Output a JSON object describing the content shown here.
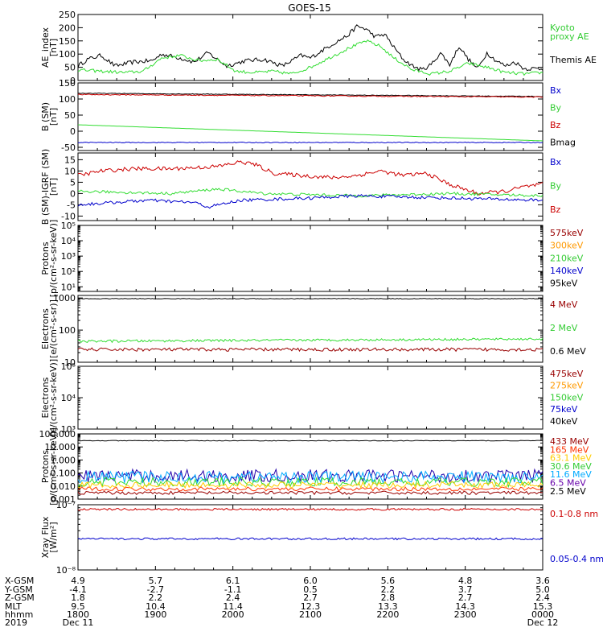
{
  "title": "GOES-15",
  "panels": [
    {
      "id": "ae",
      "ylabel": [
        "AE_index",
        "[nT]"
      ],
      "scale": "linear",
      "yrange": [
        0,
        250
      ],
      "ticks": [
        "0",
        "50",
        "100",
        "150",
        "200",
        "250"
      ],
      "legend": [
        {
          "text": "Kyoto",
          "color": "#33cc33"
        },
        {
          "text": "proxy AE",
          "color": "#33cc33"
        },
        {
          "text": "Themis AE",
          "color": "#000000"
        }
      ],
      "series": [
        {
          "name": "Themis AE",
          "color": "#000000",
          "gen": "ae_black"
        },
        {
          "name": "Kyoto proxy AE",
          "color": "#33dd33",
          "gen": "ae_green"
        }
      ]
    },
    {
      "id": "bsm",
      "ylabel": [
        "B (SM)",
        "[nT]"
      ],
      "scale": "linear",
      "yrange": [
        -60,
        150
      ],
      "ticks": [
        "-50",
        "0",
        "50",
        "100",
        "150"
      ],
      "tickvals": [
        -50,
        0,
        50,
        100,
        150
      ],
      "legend": [
        {
          "text": "Bx",
          "color": "#0000cc"
        },
        {
          "text": "By",
          "color": "#33cc33"
        },
        {
          "text": "Bz",
          "color": "#cc0000"
        },
        {
          "text": "Bmag",
          "color": "#000000"
        }
      ],
      "series": [
        {
          "name": "Bmag",
          "color": "#000000",
          "gen": "bsm_mag"
        },
        {
          "name": "Bz",
          "color": "#cc0000",
          "gen": "bsm_z"
        },
        {
          "name": "By",
          "color": "#33dd33",
          "gen": "bsm_y"
        },
        {
          "name": "Bx",
          "color": "#0000cc",
          "gen": "bsm_x"
        }
      ]
    },
    {
      "id": "bigrf",
      "ylabel": [
        "B (SM)-IGRF (SM)",
        "[nT]"
      ],
      "scale": "linear",
      "yrange": [
        -12,
        18
      ],
      "ticks": [
        "-10",
        "-5",
        "0",
        "5",
        "10",
        "15"
      ],
      "tickvals": [
        -10,
        -5,
        0,
        5,
        10,
        15
      ],
      "legend": [
        {
          "text": "Bx",
          "color": "#0000cc"
        },
        {
          "text": "By",
          "color": "#33cc33"
        },
        {
          "text": "Bz",
          "color": "#cc0000"
        }
      ],
      "series": [
        {
          "name": "Bz",
          "color": "#cc0000",
          "gen": "igrf_z"
        },
        {
          "name": "By",
          "color": "#33dd33",
          "gen": "igrf_y"
        },
        {
          "name": "Bx",
          "color": "#0000cc",
          "gen": "igrf_x"
        }
      ]
    },
    {
      "id": "protons_low",
      "ylabel": [
        "Protons",
        "[p/(cm²-s-sr-keV)]"
      ],
      "scale": "log",
      "yrange": [
        5,
        100000
      ],
      "ticks": [
        "10¹",
        "10²",
        "10³",
        "10⁴",
        "10⁵"
      ],
      "tickvals": [
        10,
        100,
        1000,
        10000,
        100000
      ],
      "legend": [
        {
          "text": "575keV",
          "color": "#990000"
        },
        {
          "text": "300keV",
          "color": "#ff9900"
        },
        {
          "text": "210keV",
          "color": "#33cc33"
        },
        {
          "text": "140keV",
          "color": "#0000cc"
        },
        {
          "text": "95keV",
          "color": "#000000"
        }
      ],
      "series": []
    },
    {
      "id": "electrons_high",
      "ylabel": [
        "Electrons",
        "[e/(cm²-s-sr)]"
      ],
      "scale": "log",
      "yrange": [
        10,
        1200
      ],
      "ticks": [
        "10",
        "100",
        "1000"
      ],
      "tickvals": [
        10,
        100,
        1000
      ],
      "legend": [
        {
          "text": "4 MeV",
          "color": "#990000"
        },
        {
          "text": "2 MeV",
          "color": "#33cc33"
        },
        {
          "text": "0.6 MeV",
          "color": "#000000"
        }
      ],
      "series": [
        {
          "name": "0.6 MeV",
          "color": "#000000",
          "gen": "e_black"
        },
        {
          "name": "2 MeV",
          "color": "#33dd33",
          "gen": "e_green"
        },
        {
          "name": "4 MeV",
          "color": "#990000",
          "gen": "e_red"
        }
      ]
    },
    {
      "id": "electrons_low",
      "ylabel": [
        "Electrons",
        "[e/(cm²-s-sr-keV)]"
      ],
      "scale": "log",
      "yrange": [
        1000,
        100000
      ],
      "ticks": [
        "10³",
        "10⁴",
        "10⁵"
      ],
      "tickvals": [
        1000,
        10000,
        100000
      ],
      "legend": [
        {
          "text": "475keV",
          "color": "#990000"
        },
        {
          "text": "275keV",
          "color": "#ff9900"
        },
        {
          "text": "150keV",
          "color": "#33cc33"
        },
        {
          "text": "75keV",
          "color": "#0000cc"
        },
        {
          "text": "40keV",
          "color": "#000000"
        }
      ],
      "series": []
    },
    {
      "id": "protons_high",
      "ylabel": [
        "Protons",
        "[p/(cm²-s-sr-keV)]"
      ],
      "scale": "log",
      "yrange": [
        0.001,
        100
      ],
      "ticks": [
        "0.001",
        "0.010",
        "0.100",
        "1.000",
        "10.000",
        "100.000"
      ],
      "tickvals": [
        0.001,
        0.01,
        0.1,
        1,
        10,
        100
      ],
      "legend": [
        {
          "text": "433 MeV",
          "color": "#990000"
        },
        {
          "text": "165 MeV",
          "color": "#ff3300"
        },
        {
          "text": "63.1 MeV",
          "color": "#ffcc00"
        },
        {
          "text": "30.6 MeV",
          "color": "#33cc33"
        },
        {
          "text": "11.6 MeV",
          "color": "#00aaff"
        },
        {
          "text": "6.5 MeV",
          "color": "#6600aa"
        },
        {
          "text": "2.5 MeV",
          "color": "#000000"
        }
      ],
      "series": [
        {
          "name": "2.5 MeV",
          "color": "#000000",
          "gen": "p_black"
        },
        {
          "name": "433 MeV",
          "color": "#990000",
          "gen": "p_red"
        },
        {
          "name": "165 MeV",
          "color": "#ff3300",
          "gen": "p_orange"
        },
        {
          "name": "6.5 MeV",
          "color": "#2200aa",
          "gen": "p_purple"
        },
        {
          "name": "11.6 MeV",
          "color": "#00aaff",
          "gen": "p_cyan"
        },
        {
          "name": "30.6 MeV",
          "color": "#33dd33",
          "gen": "p_green"
        },
        {
          "name": "63.1 MeV",
          "color": "#ffcc00",
          "gen": "p_yellow"
        }
      ]
    },
    {
      "id": "xray",
      "ylabel": [
        "Xray Flux",
        "[W/m²]"
      ],
      "scale": "log",
      "yrange": [
        1e-08,
        1e-07
      ],
      "ticks": [
        "10⁻⁸",
        "10⁻⁷"
      ],
      "tickvals": [
        1e-08,
        1e-07
      ],
      "legend": [
        {
          "text": "0.1-0.8 nm",
          "color": "#cc0000"
        },
        {
          "text": "0.05-0.4 nm",
          "color": "#0000cc"
        }
      ],
      "series": [
        {
          "name": "0.1-0.8 nm",
          "color": "#cc0000",
          "gen": "x_red"
        },
        {
          "name": "0.05-0.4 nm",
          "color": "#0000cc",
          "gen": "x_blue"
        }
      ]
    }
  ],
  "ephemeris": {
    "labels": [
      "X-GSM",
      "Y-GSM",
      "Z-GSM",
      "MLT",
      "hhmm",
      "2019"
    ],
    "columns": [
      [
        "4.9",
        "-4.1",
        "1.8",
        "9.5",
        "1800",
        "Dec 11"
      ],
      [
        "5.7",
        "-2.7",
        "2.2",
        "10.4",
        "1900",
        ""
      ],
      [
        "6.1",
        "-1.1",
        "2.4",
        "11.4",
        "2000",
        ""
      ],
      [
        "6.0",
        "0.5",
        "2.7",
        "12.3",
        "2100",
        ""
      ],
      [
        "5.6",
        "2.2",
        "2.8",
        "13.3",
        "2200",
        ""
      ],
      [
        "4.8",
        "3.7",
        "2.7",
        "14.3",
        "2300",
        ""
      ],
      [
        "3.6",
        "5.0",
        "2.4",
        "15.3",
        "0000",
        "Dec 12"
      ]
    ]
  }
}
